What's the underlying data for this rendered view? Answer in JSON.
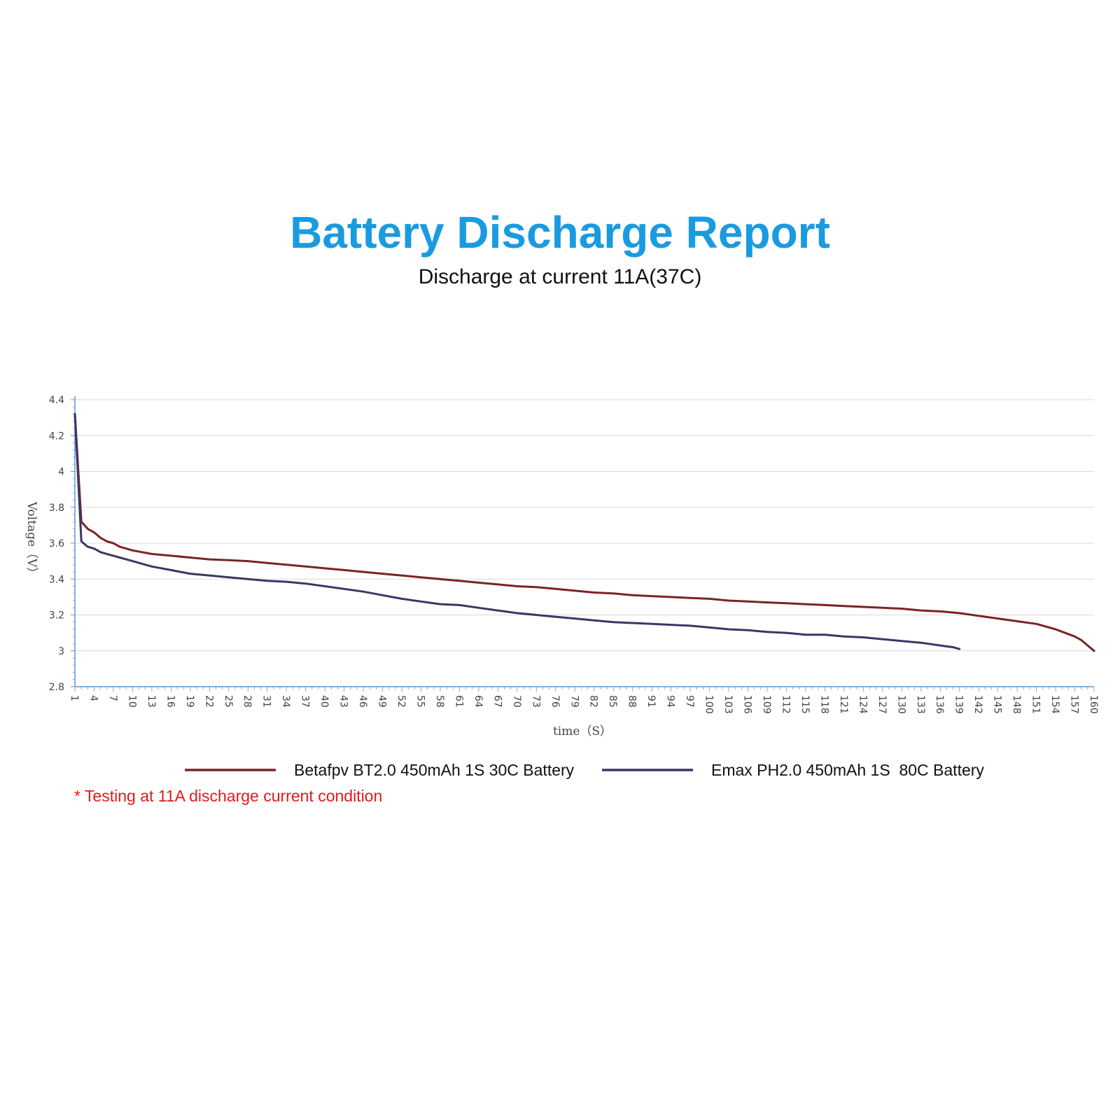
{
  "header": {
    "title": "Battery Discharge Report",
    "subtitle": "Discharge at current 11A(37C)"
  },
  "footnote": "* Testing at 11A discharge current condition",
  "chart_data": {
    "type": "line",
    "title": "Battery Discharge Report",
    "subtitle": "Discharge at current 11A(37C)",
    "xlabel": "time（S）",
    "ylabel": "Voltage（V）",
    "xlim": [
      1,
      160
    ],
    "ylim": [
      2.8,
      4.4
    ],
    "y_ticks": [
      "2.8",
      "3",
      "3.2",
      "3.4",
      "3.6",
      "3.8",
      "4",
      "4.2",
      "4.4"
    ],
    "x_ticks": [
      "1",
      "4",
      "7",
      "10",
      "13",
      "16",
      "19",
      "22",
      "25",
      "28",
      "31",
      "34",
      "37",
      "40",
      "43",
      "46",
      "49",
      "52",
      "55",
      "58",
      "61",
      "64",
      "67",
      "70",
      "73",
      "76",
      "79",
      "82",
      "85",
      "88",
      "91",
      "94",
      "97",
      "100",
      "103",
      "106",
      "109",
      "112",
      "115",
      "118",
      "121",
      "124",
      "127",
      "130",
      "133",
      "136",
      "139",
      "142",
      "145",
      "148",
      "151",
      "154",
      "157",
      "160"
    ],
    "grid": "horizontal",
    "legend_position": "bottom",
    "series": [
      {
        "name": "Betafpv BT2.0 450mAh 1S 30C Battery",
        "color": "#7a2424",
        "x": [
          1,
          2,
          3,
          4,
          5,
          6,
          7,
          8,
          9,
          10,
          13,
          16,
          19,
          22,
          25,
          28,
          31,
          34,
          37,
          40,
          43,
          46,
          49,
          52,
          55,
          58,
          61,
          64,
          67,
          70,
          73,
          76,
          79,
          82,
          85,
          88,
          91,
          94,
          97,
          100,
          103,
          106,
          109,
          112,
          115,
          118,
          121,
          124,
          127,
          130,
          133,
          136,
          139,
          142,
          145,
          148,
          151,
          154,
          157,
          158,
          159,
          160
        ],
        "y": [
          4.32,
          3.72,
          3.68,
          3.66,
          3.63,
          3.61,
          3.6,
          3.58,
          3.57,
          3.56,
          3.54,
          3.53,
          3.52,
          3.51,
          3.505,
          3.5,
          3.49,
          3.48,
          3.47,
          3.46,
          3.45,
          3.44,
          3.43,
          3.42,
          3.41,
          3.4,
          3.39,
          3.38,
          3.37,
          3.36,
          3.355,
          3.345,
          3.335,
          3.325,
          3.32,
          3.31,
          3.305,
          3.3,
          3.295,
          3.29,
          3.28,
          3.275,
          3.27,
          3.265,
          3.26,
          3.255,
          3.25,
          3.245,
          3.24,
          3.235,
          3.225,
          3.22,
          3.21,
          3.195,
          3.18,
          3.165,
          3.15,
          3.12,
          3.08,
          3.06,
          3.03,
          3.0
        ]
      },
      {
        "name": "Emax PH2.0 450mAh 1S  80C Battery",
        "color": "#3d3566",
        "x": [
          1,
          2,
          3,
          4,
          5,
          6,
          7,
          8,
          9,
          10,
          13,
          16,
          19,
          22,
          25,
          28,
          31,
          34,
          37,
          40,
          43,
          46,
          49,
          52,
          55,
          58,
          61,
          64,
          67,
          70,
          73,
          76,
          79,
          82,
          85,
          88,
          91,
          94,
          97,
          100,
          103,
          106,
          109,
          112,
          115,
          118,
          121,
          124,
          127,
          130,
          133,
          136,
          138,
          139
        ],
        "y": [
          4.32,
          3.61,
          3.58,
          3.57,
          3.55,
          3.54,
          3.53,
          3.52,
          3.51,
          3.5,
          3.47,
          3.45,
          3.43,
          3.42,
          3.41,
          3.4,
          3.39,
          3.385,
          3.375,
          3.36,
          3.345,
          3.33,
          3.31,
          3.29,
          3.275,
          3.26,
          3.255,
          3.24,
          3.225,
          3.21,
          3.2,
          3.19,
          3.18,
          3.17,
          3.16,
          3.155,
          3.15,
          3.145,
          3.14,
          3.13,
          3.12,
          3.115,
          3.105,
          3.1,
          3.09,
          3.09,
          3.08,
          3.075,
          3.065,
          3.055,
          3.045,
          3.03,
          3.02,
          3.01
        ]
      }
    ]
  }
}
